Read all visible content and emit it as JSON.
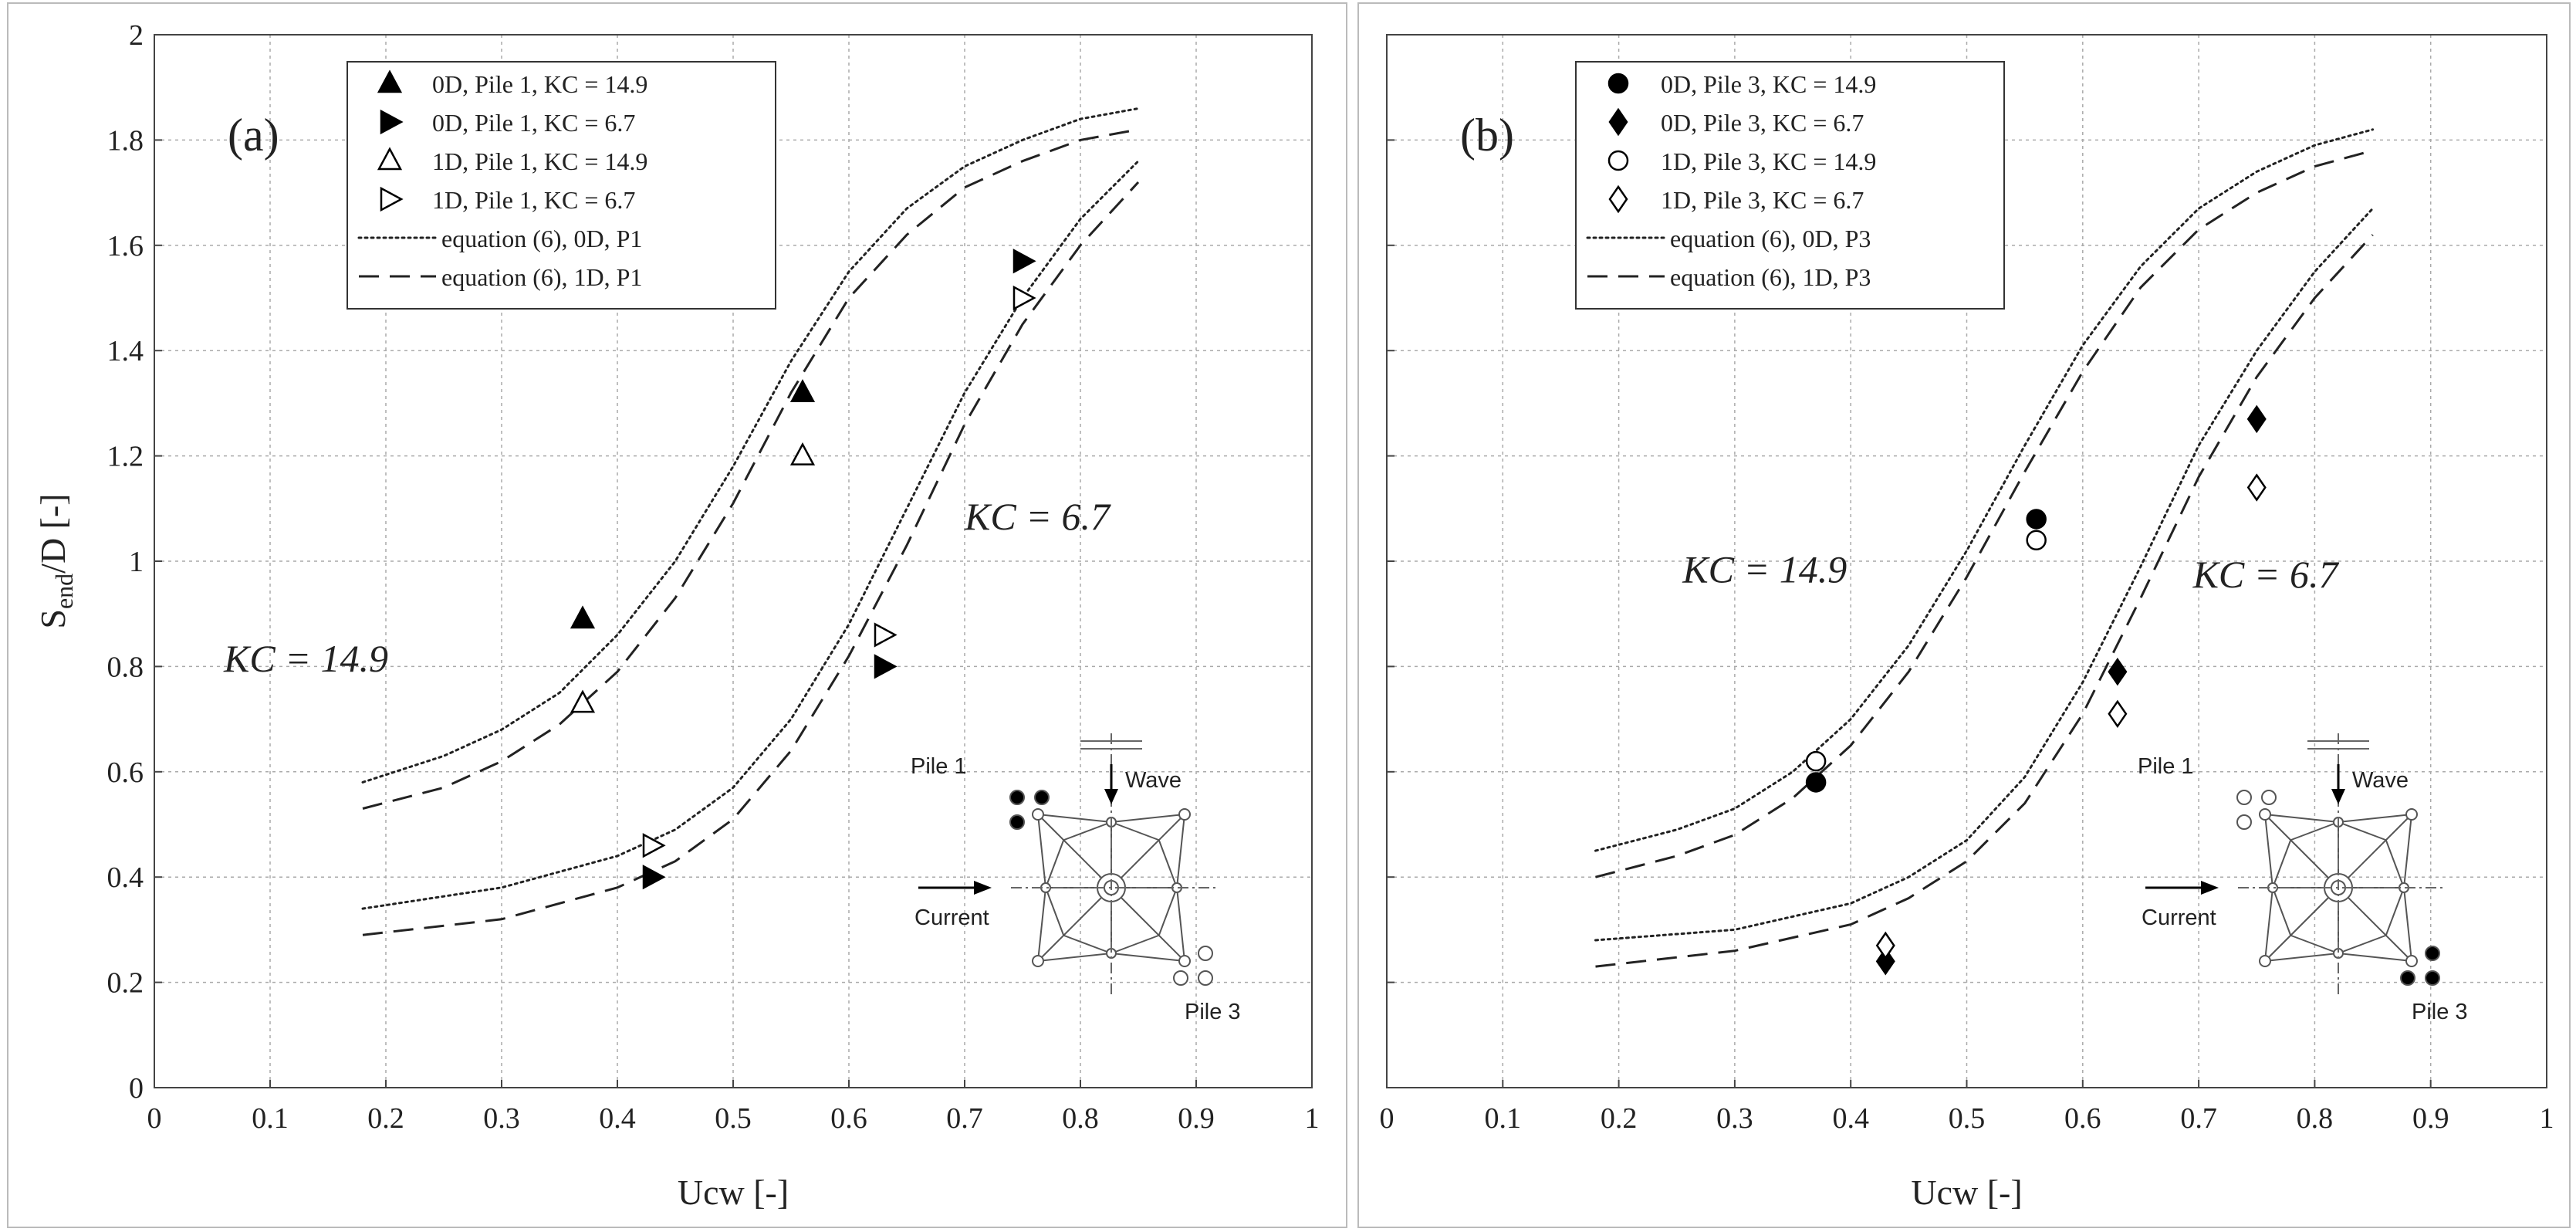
{
  "chart_data": [
    {
      "type": "scatter",
      "panel_label": "(a)",
      "xlabel": "Ucw [-]",
      "ylabel": "S",
      "ylabel_sub": "end",
      "ylabel_suffix": "/D [-]",
      "xlim": [
        0,
        1
      ],
      "ylim": [
        0,
        2
      ],
      "xticks": [
        0,
        0.1,
        0.2,
        0.3,
        0.4,
        0.5,
        0.6,
        0.7,
        0.8,
        0.9,
        1
      ],
      "xtick_labels": [
        "0",
        "0.1",
        "0.2",
        "0.3",
        "0.4",
        "0.5",
        "0.6",
        "0.7",
        "0.8",
        "0.9",
        "1"
      ],
      "yticks": [
        0,
        0.2,
        0.4,
        0.6,
        0.8,
        1,
        1.2,
        1.4,
        1.6,
        1.8,
        2
      ],
      "ytick_labels": [
        "0",
        "0.2",
        "0.4",
        "0.6",
        "0.8",
        "1",
        "1.2",
        "1.4",
        "1.6",
        "1.8",
        "2"
      ],
      "grid": true,
      "legend_position": "top-left",
      "series": [
        {
          "name": "0D, Pile 1, KC = 14.9",
          "marker": "triangle-up",
          "filled": true,
          "points": [
            [
              0.37,
              0.89
            ],
            [
              0.56,
              1.32
            ]
          ]
        },
        {
          "name": "0D, Pile 1, KC = 6.7",
          "marker": "triangle-right",
          "filled": true,
          "points": [
            [
              0.43,
              0.4
            ],
            [
              0.63,
              0.8
            ],
            [
              0.75,
              1.57
            ]
          ]
        },
        {
          "name": "1D, Pile 1, KC = 14.9",
          "marker": "triangle-up",
          "filled": false,
          "points": [
            [
              0.37,
              0.73
            ],
            [
              0.56,
              1.2
            ]
          ]
        },
        {
          "name": "1D, Pile 1, KC = 6.7",
          "marker": "triangle-right",
          "filled": false,
          "points": [
            [
              0.43,
              0.46
            ],
            [
              0.63,
              0.86
            ],
            [
              0.75,
              1.5
            ]
          ]
        }
      ],
      "curves": [
        {
          "name": "equation (6), 0D, P1",
          "style": "dotted",
          "show_in_legend": true,
          "x": [
            0.18,
            0.25,
            0.3,
            0.35,
            0.4,
            0.45,
            0.5,
            0.55,
            0.6,
            0.65,
            0.7,
            0.75,
            0.8,
            0.85
          ],
          "y": [
            0.58,
            0.63,
            0.68,
            0.75,
            0.86,
            1.0,
            1.18,
            1.38,
            1.55,
            1.67,
            1.75,
            1.8,
            1.84,
            1.86
          ]
        },
        {
          "name": "equation (6), 1D, P1",
          "style": "dashed",
          "show_in_legend": true,
          "x": [
            0.18,
            0.25,
            0.3,
            0.35,
            0.4,
            0.45,
            0.5,
            0.55,
            0.6,
            0.65,
            0.7,
            0.75,
            0.8,
            0.85
          ],
          "y": [
            0.53,
            0.57,
            0.62,
            0.69,
            0.79,
            0.93,
            1.11,
            1.32,
            1.5,
            1.62,
            1.71,
            1.76,
            1.8,
            1.82
          ]
        },
        {
          "name": "equation (6), 0D, P1, KC = 6.7",
          "style": "dotted",
          "show_in_legend": false,
          "x": [
            0.18,
            0.3,
            0.4,
            0.45,
            0.5,
            0.55,
            0.6,
            0.65,
            0.7,
            0.75,
            0.8,
            0.85
          ],
          "y": [
            0.34,
            0.38,
            0.44,
            0.49,
            0.57,
            0.7,
            0.88,
            1.1,
            1.32,
            1.5,
            1.65,
            1.76
          ]
        },
        {
          "name": "equation (6), 1D, P1, KC = 6.7",
          "style": "dashed",
          "show_in_legend": false,
          "x": [
            0.18,
            0.3,
            0.4,
            0.45,
            0.5,
            0.55,
            0.6,
            0.65,
            0.7,
            0.75,
            0.8,
            0.85
          ],
          "y": [
            0.29,
            0.32,
            0.38,
            0.43,
            0.51,
            0.64,
            0.82,
            1.03,
            1.26,
            1.45,
            1.6,
            1.72
          ]
        }
      ],
      "annotations": [
        {
          "text": "KC = 14.9",
          "x": 0.06,
          "y": 0.79
        },
        {
          "text": "KC = 6.7",
          "x": 0.7,
          "y": 1.06
        }
      ],
      "inset": {
        "pile1_label": "Pile 1",
        "pile3_label": "Pile 3",
        "wave_label": "Wave",
        "current_label": "Current",
        "marked_pile": "pile1"
      }
    },
    {
      "type": "scatter",
      "panel_label": "(b)",
      "xlabel": "Ucw [-]",
      "xlim": [
        0,
        1
      ],
      "ylim": [
        0,
        2
      ],
      "xticks": [
        0,
        0.1,
        0.2,
        0.3,
        0.4,
        0.5,
        0.6,
        0.7,
        0.8,
        0.9,
        1
      ],
      "xtick_labels": [
        "0",
        "0.1",
        "0.2",
        "0.3",
        "0.4",
        "0.5",
        "0.6",
        "0.7",
        "0.8",
        "0.9",
        "1"
      ],
      "yticks": [
        0,
        0.2,
        0.4,
        0.6,
        0.8,
        1,
        1.2,
        1.4,
        1.6,
        1.8,
        2
      ],
      "grid": true,
      "legend_position": "top-left",
      "series": [
        {
          "name": "0D, Pile 3, KC = 14.9",
          "marker": "circle",
          "filled": true,
          "points": [
            [
              0.37,
              0.58
            ],
            [
              0.56,
              1.08
            ]
          ]
        },
        {
          "name": "0D, Pile 3, KC = 6.7",
          "marker": "diamond",
          "filled": true,
          "points": [
            [
              0.43,
              0.24
            ],
            [
              0.63,
              0.79
            ],
            [
              0.75,
              1.27
            ]
          ]
        },
        {
          "name": "1D, Pile 3, KC = 14.9",
          "marker": "circle",
          "filled": false,
          "points": [
            [
              0.37,
              0.62
            ],
            [
              0.56,
              1.04
            ]
          ]
        },
        {
          "name": "1D, Pile 3, KC = 6.7",
          "marker": "diamond",
          "filled": false,
          "points": [
            [
              0.43,
              0.27
            ],
            [
              0.63,
              0.71
            ],
            [
              0.75,
              1.14
            ]
          ]
        }
      ],
      "curves": [
        {
          "name": "equation (6), 0D, P3",
          "style": "dotted",
          "show_in_legend": true,
          "x": [
            0.18,
            0.25,
            0.3,
            0.35,
            0.4,
            0.45,
            0.5,
            0.55,
            0.6,
            0.65,
            0.7,
            0.75,
            0.8,
            0.85
          ],
          "y": [
            0.45,
            0.49,
            0.53,
            0.6,
            0.7,
            0.84,
            1.02,
            1.22,
            1.41,
            1.56,
            1.67,
            1.74,
            1.79,
            1.82
          ]
        },
        {
          "name": "equation (6), 1D, P3",
          "style": "dashed",
          "show_in_legend": true,
          "x": [
            0.18,
            0.25,
            0.3,
            0.35,
            0.4,
            0.45,
            0.5,
            0.55,
            0.6,
            0.65,
            0.7,
            0.75,
            0.8,
            0.85
          ],
          "y": [
            0.4,
            0.44,
            0.48,
            0.55,
            0.65,
            0.79,
            0.97,
            1.17,
            1.36,
            1.52,
            1.63,
            1.7,
            1.75,
            1.78
          ]
        },
        {
          "name": "equation (6), 0D, P3, KC = 6.7",
          "style": "dotted",
          "show_in_legend": false,
          "x": [
            0.18,
            0.3,
            0.4,
            0.45,
            0.5,
            0.55,
            0.6,
            0.65,
            0.7,
            0.75,
            0.8,
            0.85
          ],
          "y": [
            0.28,
            0.3,
            0.35,
            0.4,
            0.47,
            0.59,
            0.77,
            0.99,
            1.22,
            1.4,
            1.55,
            1.67
          ]
        },
        {
          "name": "equation (6), 1D, P3, KC = 6.7",
          "style": "dashed",
          "show_in_legend": false,
          "x": [
            0.18,
            0.3,
            0.4,
            0.45,
            0.5,
            0.55,
            0.6,
            0.65,
            0.7,
            0.75,
            0.8,
            0.85
          ],
          "y": [
            0.23,
            0.26,
            0.31,
            0.36,
            0.43,
            0.54,
            0.71,
            0.93,
            1.16,
            1.35,
            1.5,
            1.62
          ]
        }
      ],
      "annotations": [
        {
          "text": "KC = 14.9",
          "x": 0.255,
          "y": 0.96
        },
        {
          "text": "KC = 6.7",
          "x": 0.695,
          "y": 0.95
        }
      ],
      "inset": {
        "pile1_label": "Pile 1",
        "pile3_label": "Pile 3",
        "wave_label": "Wave",
        "current_label": "Current",
        "marked_pile": "pile3"
      }
    }
  ]
}
